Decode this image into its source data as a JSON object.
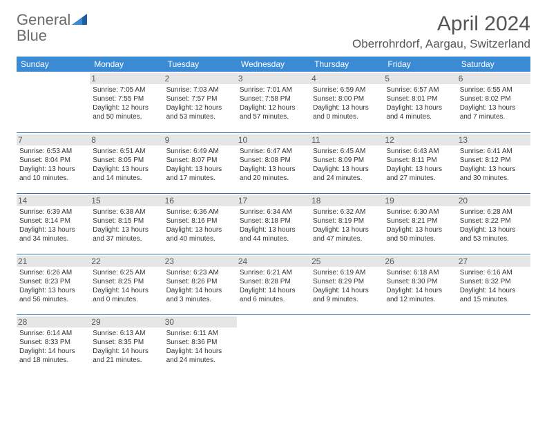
{
  "brand": {
    "word1": "General",
    "word2": "Blue"
  },
  "title": "April 2024",
  "location": "Oberrohrdorf, Aargau, Switzerland",
  "colors": {
    "header_bg": "#3b8bd4",
    "header_text": "#ffffff",
    "row_divider": "#2d6fa8",
    "daynum_bg": "#e6e6e6",
    "body_text": "#333333",
    "logo_gray": "#6b6b6b",
    "logo_blue": "#2d7bc0",
    "triangle_fill": "#1f5f9e"
  },
  "weekdays": [
    "Sunday",
    "Monday",
    "Tuesday",
    "Wednesday",
    "Thursday",
    "Friday",
    "Saturday"
  ],
  "weeks": [
    [
      {
        "n": "",
        "lines": []
      },
      {
        "n": "1",
        "lines": [
          "Sunrise: 7:05 AM",
          "Sunset: 7:55 PM",
          "Daylight: 12 hours and 50 minutes."
        ]
      },
      {
        "n": "2",
        "lines": [
          "Sunrise: 7:03 AM",
          "Sunset: 7:57 PM",
          "Daylight: 12 hours and 53 minutes."
        ]
      },
      {
        "n": "3",
        "lines": [
          "Sunrise: 7:01 AM",
          "Sunset: 7:58 PM",
          "Daylight: 12 hours and 57 minutes."
        ]
      },
      {
        "n": "4",
        "lines": [
          "Sunrise: 6:59 AM",
          "Sunset: 8:00 PM",
          "Daylight: 13 hours and 0 minutes."
        ]
      },
      {
        "n": "5",
        "lines": [
          "Sunrise: 6:57 AM",
          "Sunset: 8:01 PM",
          "Daylight: 13 hours and 4 minutes."
        ]
      },
      {
        "n": "6",
        "lines": [
          "Sunrise: 6:55 AM",
          "Sunset: 8:02 PM",
          "Daylight: 13 hours and 7 minutes."
        ]
      }
    ],
    [
      {
        "n": "7",
        "lines": [
          "Sunrise: 6:53 AM",
          "Sunset: 8:04 PM",
          "Daylight: 13 hours and 10 minutes."
        ]
      },
      {
        "n": "8",
        "lines": [
          "Sunrise: 6:51 AM",
          "Sunset: 8:05 PM",
          "Daylight: 13 hours and 14 minutes."
        ]
      },
      {
        "n": "9",
        "lines": [
          "Sunrise: 6:49 AM",
          "Sunset: 8:07 PM",
          "Daylight: 13 hours and 17 minutes."
        ]
      },
      {
        "n": "10",
        "lines": [
          "Sunrise: 6:47 AM",
          "Sunset: 8:08 PM",
          "Daylight: 13 hours and 20 minutes."
        ]
      },
      {
        "n": "11",
        "lines": [
          "Sunrise: 6:45 AM",
          "Sunset: 8:09 PM",
          "Daylight: 13 hours and 24 minutes."
        ]
      },
      {
        "n": "12",
        "lines": [
          "Sunrise: 6:43 AM",
          "Sunset: 8:11 PM",
          "Daylight: 13 hours and 27 minutes."
        ]
      },
      {
        "n": "13",
        "lines": [
          "Sunrise: 6:41 AM",
          "Sunset: 8:12 PM",
          "Daylight: 13 hours and 30 minutes."
        ]
      }
    ],
    [
      {
        "n": "14",
        "lines": [
          "Sunrise: 6:39 AM",
          "Sunset: 8:14 PM",
          "Daylight: 13 hours and 34 minutes."
        ]
      },
      {
        "n": "15",
        "lines": [
          "Sunrise: 6:38 AM",
          "Sunset: 8:15 PM",
          "Daylight: 13 hours and 37 minutes."
        ]
      },
      {
        "n": "16",
        "lines": [
          "Sunrise: 6:36 AM",
          "Sunset: 8:16 PM",
          "Daylight: 13 hours and 40 minutes."
        ]
      },
      {
        "n": "17",
        "lines": [
          "Sunrise: 6:34 AM",
          "Sunset: 8:18 PM",
          "Daylight: 13 hours and 44 minutes."
        ]
      },
      {
        "n": "18",
        "lines": [
          "Sunrise: 6:32 AM",
          "Sunset: 8:19 PM",
          "Daylight: 13 hours and 47 minutes."
        ]
      },
      {
        "n": "19",
        "lines": [
          "Sunrise: 6:30 AM",
          "Sunset: 8:21 PM",
          "Daylight: 13 hours and 50 minutes."
        ]
      },
      {
        "n": "20",
        "lines": [
          "Sunrise: 6:28 AM",
          "Sunset: 8:22 PM",
          "Daylight: 13 hours and 53 minutes."
        ]
      }
    ],
    [
      {
        "n": "21",
        "lines": [
          "Sunrise: 6:26 AM",
          "Sunset: 8:23 PM",
          "Daylight: 13 hours and 56 minutes."
        ]
      },
      {
        "n": "22",
        "lines": [
          "Sunrise: 6:25 AM",
          "Sunset: 8:25 PM",
          "Daylight: 14 hours and 0 minutes."
        ]
      },
      {
        "n": "23",
        "lines": [
          "Sunrise: 6:23 AM",
          "Sunset: 8:26 PM",
          "Daylight: 14 hours and 3 minutes."
        ]
      },
      {
        "n": "24",
        "lines": [
          "Sunrise: 6:21 AM",
          "Sunset: 8:28 PM",
          "Daylight: 14 hours and 6 minutes."
        ]
      },
      {
        "n": "25",
        "lines": [
          "Sunrise: 6:19 AM",
          "Sunset: 8:29 PM",
          "Daylight: 14 hours and 9 minutes."
        ]
      },
      {
        "n": "26",
        "lines": [
          "Sunrise: 6:18 AM",
          "Sunset: 8:30 PM",
          "Daylight: 14 hours and 12 minutes."
        ]
      },
      {
        "n": "27",
        "lines": [
          "Sunrise: 6:16 AM",
          "Sunset: 8:32 PM",
          "Daylight: 14 hours and 15 minutes."
        ]
      }
    ],
    [
      {
        "n": "28",
        "lines": [
          "Sunrise: 6:14 AM",
          "Sunset: 8:33 PM",
          "Daylight: 14 hours and 18 minutes."
        ]
      },
      {
        "n": "29",
        "lines": [
          "Sunrise: 6:13 AM",
          "Sunset: 8:35 PM",
          "Daylight: 14 hours and 21 minutes."
        ]
      },
      {
        "n": "30",
        "lines": [
          "Sunrise: 6:11 AM",
          "Sunset: 8:36 PM",
          "Daylight: 14 hours and 24 minutes."
        ]
      },
      {
        "n": "",
        "lines": []
      },
      {
        "n": "",
        "lines": []
      },
      {
        "n": "",
        "lines": []
      },
      {
        "n": "",
        "lines": []
      }
    ]
  ]
}
